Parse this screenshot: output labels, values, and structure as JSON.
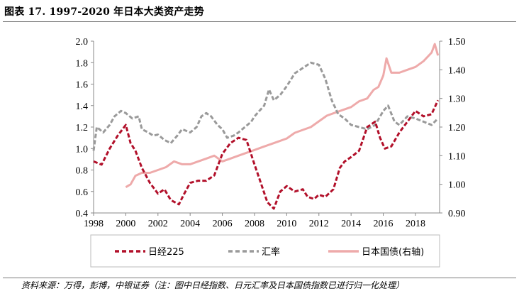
{
  "title": "图表 17. 1997-2020 年日本大类资产走势",
  "source": "资料来源：万得，彭博，中银证券（注：图中日经指数、日元汇率及日本国债指数已进行归一化处理）",
  "colors": {
    "nikkei": "#b2102a",
    "fx": "#9a9a9a",
    "jgb": "#eeaaaa",
    "axis": "#888888",
    "legend_border": "#bbbbbb"
  },
  "chart_data": {
    "type": "line",
    "x_ticks": [
      "1998",
      "2000",
      "2002",
      "2004",
      "2006",
      "2008",
      "2010",
      "2012",
      "2014",
      "2016",
      "2018"
    ],
    "xlim": [
      1998,
      2019.5
    ],
    "y_left_ticks": [
      "0.4",
      "0.6",
      "0.8",
      "1.0",
      "1.2",
      "1.4",
      "1.6",
      "1.8",
      "2.0"
    ],
    "y_left_lim": [
      0.4,
      2.0
    ],
    "y_right_ticks": [
      "0.90",
      "1.00",
      "1.10",
      "1.20",
      "1.30",
      "1.40",
      "1.50"
    ],
    "y_right_lim": [
      0.9,
      1.5
    ],
    "grid": false,
    "legend_position": "bottom",
    "series": [
      {
        "name": "日经225",
        "axis": "left",
        "style": "dashed",
        "x": [
          1998,
          1998.5,
          1999,
          1999.5,
          2000,
          2000.3,
          2000.6,
          2001,
          2001.5,
          2002,
          2002.4,
          2002.8,
          2003.3,
          2003.6,
          2004,
          2004.5,
          2005,
          2005.5,
          2006,
          2006.5,
          2007,
          2007.5,
          2008,
          2008.3,
          2008.8,
          2009.2,
          2009.6,
          2010,
          2010.5,
          2011,
          2011.3,
          2011.7,
          2012,
          2012.4,
          2012.9,
          2013.3,
          2013.6,
          2014,
          2014.5,
          2015,
          2015.5,
          2015.8,
          2016.1,
          2016.5,
          2017,
          2017.5,
          2018,
          2018.5,
          2019,
          2019.4
        ],
        "values": [
          0.88,
          0.85,
          1.0,
          1.12,
          1.22,
          1.05,
          0.98,
          0.82,
          0.68,
          0.58,
          0.62,
          0.52,
          0.48,
          0.57,
          0.68,
          0.7,
          0.7,
          0.75,
          0.95,
          1.05,
          1.1,
          1.08,
          0.85,
          0.72,
          0.5,
          0.44,
          0.6,
          0.65,
          0.6,
          0.62,
          0.55,
          0.53,
          0.57,
          0.55,
          0.62,
          0.82,
          0.88,
          0.92,
          0.98,
          1.2,
          1.25,
          1.1,
          1.0,
          1.02,
          1.15,
          1.25,
          1.35,
          1.3,
          1.32,
          1.45
        ]
      },
      {
        "name": "汇率",
        "axis": "left",
        "style": "dashed",
        "x": [
          1998,
          1998.2,
          1998.6,
          1999,
          1999.3,
          1999.7,
          2000,
          2000.4,
          2000.8,
          2001,
          2001.4,
          2001.7,
          2002,
          2002.4,
          2002.8,
          2003.2,
          2003.5,
          2004,
          2004.4,
          2004.7,
          2005,
          2005.3,
          2005.7,
          2006,
          2006.3,
          2006.7,
          2007,
          2007.4,
          2007.8,
          2008,
          2008.3,
          2008.6,
          2008.9,
          2009.2,
          2009.6,
          2010,
          2010.5,
          2011,
          2011.5,
          2012,
          2012.4,
          2012.8,
          2013.2,
          2013.6,
          2014,
          2014.5,
          2015,
          2015.5,
          2016,
          2016.3,
          2016.7,
          2017,
          2017.5,
          2018,
          2018.5,
          2019,
          2019.4
        ],
        "values": [
          0.98,
          1.2,
          1.15,
          1.22,
          1.3,
          1.35,
          1.33,
          1.28,
          1.3,
          1.18,
          1.15,
          1.12,
          1.13,
          1.08,
          1.05,
          1.12,
          1.18,
          1.15,
          1.2,
          1.3,
          1.33,
          1.3,
          1.22,
          1.18,
          1.1,
          1.12,
          1.15,
          1.2,
          1.25,
          1.3,
          1.35,
          1.4,
          1.55,
          1.45,
          1.5,
          1.58,
          1.7,
          1.75,
          1.8,
          1.78,
          1.65,
          1.45,
          1.32,
          1.28,
          1.22,
          1.2,
          1.18,
          1.22,
          1.35,
          1.4,
          1.25,
          1.22,
          1.3,
          1.28,
          1.25,
          1.22,
          1.28
        ]
      },
      {
        "name": "日本国债(右轴)",
        "axis": "right",
        "style": "solid",
        "x": [
          2000,
          2000.3,
          2000.6,
          2001,
          2001.5,
          2002,
          2002.5,
          2003,
          2003.5,
          2004,
          2004.5,
          2005,
          2005.5,
          2006,
          2006.5,
          2007,
          2007.5,
          2008,
          2008.5,
          2009,
          2009.5,
          2010,
          2010.5,
          2011,
          2011.5,
          2012,
          2012.5,
          2013,
          2013.5,
          2014,
          2014.5,
          2015,
          2015.4,
          2015.7,
          2016,
          2016.2,
          2016.5,
          2017,
          2017.5,
          2018,
          2018.5,
          2019,
          2019.2,
          2019.4
        ],
        "values": [
          0.99,
          1.0,
          1.03,
          1.04,
          1.04,
          1.05,
          1.06,
          1.08,
          1.07,
          1.07,
          1.08,
          1.09,
          1.1,
          1.08,
          1.09,
          1.1,
          1.11,
          1.12,
          1.13,
          1.14,
          1.15,
          1.16,
          1.18,
          1.19,
          1.2,
          1.22,
          1.24,
          1.25,
          1.26,
          1.27,
          1.29,
          1.3,
          1.33,
          1.34,
          1.38,
          1.44,
          1.39,
          1.39,
          1.4,
          1.41,
          1.43,
          1.46,
          1.49,
          1.45
        ]
      }
    ]
  }
}
